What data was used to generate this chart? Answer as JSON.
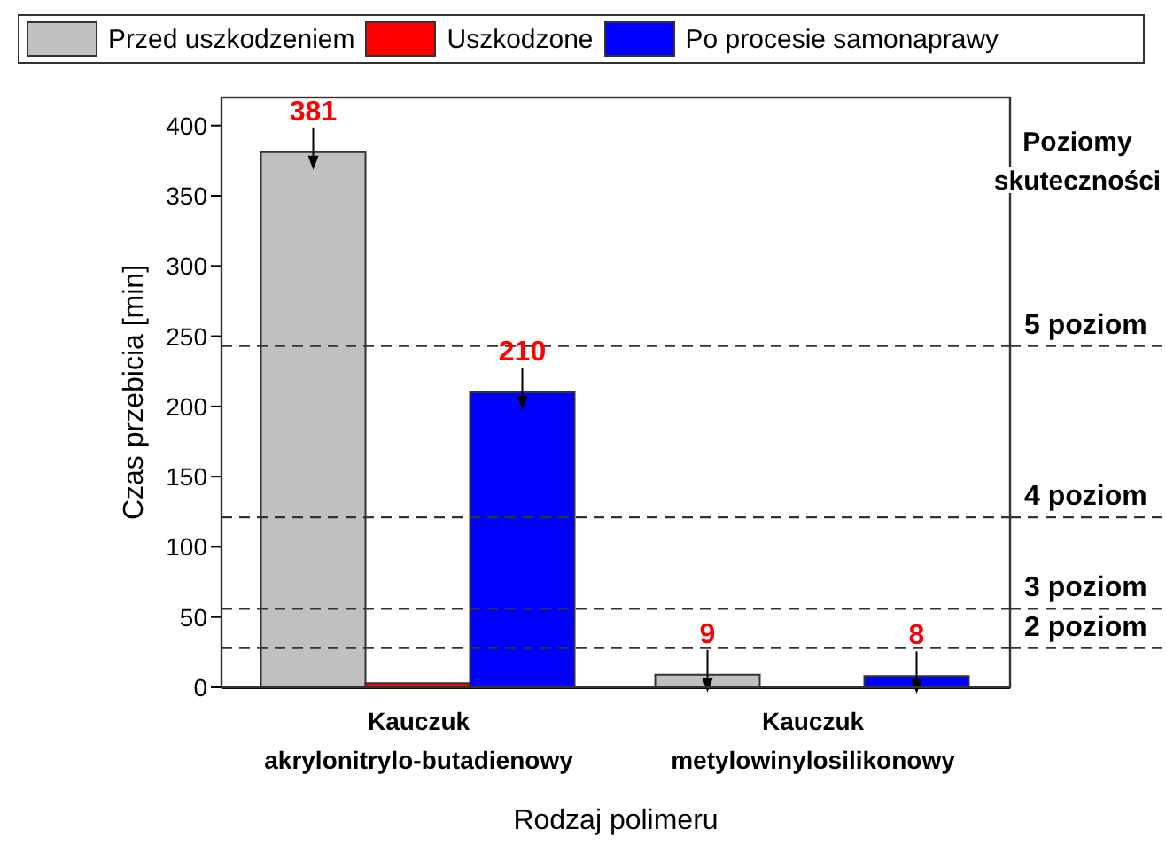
{
  "chart_data": {
    "type": "bar",
    "xlabel": "Rodzaj polimeru",
    "ylabel": "Czas przebicia [min]",
    "categories": [
      "Kauczuk akrylonitrylo-butadienowy",
      "Kauczuk metylowinylosilikonowy"
    ],
    "series": [
      {
        "name": "Przed uszkodzeniem",
        "color": "#c0c0c0",
        "values": [
          381,
          9
        ],
        "value_labels": [
          "381",
          "9"
        ]
      },
      {
        "name": "Uszkodzone",
        "color": "#ff0000",
        "values": [
          3,
          0
        ],
        "value_labels": [
          null,
          null
        ]
      },
      {
        "name": "Po procesie samonaprawy",
        "color": "#0000ff",
        "values": [
          210,
          8
        ],
        "value_labels": [
          "210",
          "8"
        ]
      }
    ],
    "ylim": [
      0,
      420
    ],
    "yticks": [
      0,
      50,
      100,
      150,
      200,
      250,
      300,
      350,
      400
    ],
    "ref_lines": [
      {
        "axis": "y",
        "value": 243,
        "label": "5 poziom",
        "color": "#333333",
        "line_style": "dashed"
      },
      {
        "axis": "y",
        "value": 121,
        "label": "4 poziom",
        "color": "#333333",
        "line_style": "dashed"
      },
      {
        "axis": "y",
        "value": 56,
        "label": "3 poziom",
        "color": "#333333",
        "line_style": "dashed"
      },
      {
        "axis": "y",
        "value": 28,
        "label": "2 poziom",
        "color": "#333333",
        "line_style": "dashed"
      }
    ],
    "annotations": [
      "Poziomy skuteczności"
    ],
    "legend": "top",
    "grid": false
  }
}
